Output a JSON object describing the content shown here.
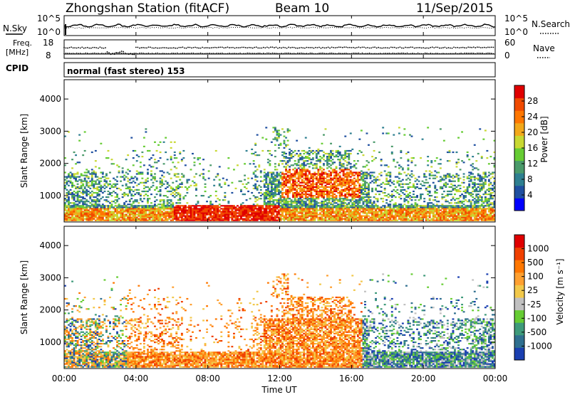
{
  "header": {
    "station": "Zhongshan Station (fitACF)",
    "beam": "Beam 10",
    "date": "11/Sep/2015"
  },
  "status_panels": {
    "nsky_label": "N.Sky",
    "nsky_ticks": [
      "10^5",
      "10^0"
    ],
    "nsearch_label": "N.Search",
    "nsearch_ticks": [
      "10^5",
      "10^0"
    ],
    "freq_label_1": "Freq.",
    "freq_label_2": "[MHz]",
    "freq_ticks": [
      "18",
      "8"
    ],
    "nave_label": "Nave",
    "nave_ticks": [
      "60",
      "0"
    ],
    "cpid_label": "CPID",
    "cpid_value": "normal (fast stereo) 153"
  },
  "chart_data": [
    {
      "type": "heatmap",
      "name": "power",
      "ylabel": "Slant Range [km]",
      "yticks": [
        1000,
        2000,
        3000,
        4000
      ],
      "ylim": [
        180,
        4600
      ],
      "xlim": [
        0,
        24
      ],
      "colorbar": {
        "label": "Power [dB]",
        "ticks": [
          "28",
          "24",
          "20",
          "16",
          "12",
          "8",
          "4"
        ],
        "colors": [
          "#0000ff",
          "#1f4fa0",
          "#2e7f90",
          "#4a9a6a",
          "#66cc33",
          "#c8d832",
          "#f2a81a",
          "#ff7700",
          "#f04a00",
          "#e00000"
        ]
      }
    },
    {
      "type": "heatmap",
      "name": "velocity",
      "ylabel": "Slant Range [km]",
      "yticks": [
        1000,
        2000,
        3000,
        4000
      ],
      "ylim": [
        180,
        4600
      ],
      "xlim": [
        0,
        24
      ],
      "xlabel": "Time UT",
      "xticks": [
        "00:00",
        "04:00",
        "08:00",
        "12:00",
        "16:00",
        "20:00",
        "00:00"
      ],
      "colorbar": {
        "label": "Velocity [m s⁻¹]",
        "ticks": [
          "1000",
          "500",
          "100",
          "25",
          "-25",
          "-100",
          "-500",
          "-1000"
        ],
        "colors": [
          "#1a3fb0",
          "#2f6f8f",
          "#3e9a7a",
          "#66cc33",
          "#c0c0c0",
          "#f2c84a",
          "#ffa030",
          "#ff7700",
          "#f04000",
          "#e00000"
        ]
      }
    }
  ],
  "colors": {
    "freq_dots": "#000000",
    "background": "#ffffff"
  }
}
